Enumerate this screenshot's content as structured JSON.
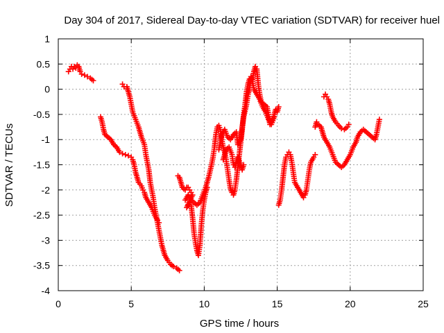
{
  "chart_data": {
    "type": "scatter",
    "title": "Day 304 of 2017, Sidereal Day-to-day VTEC variation (SDTVAR) for receiver huel",
    "xlabel": "GPS time / hours",
    "ylabel": "SDTVAR / TECUs",
    "xlim": [
      0,
      25
    ],
    "ylim": [
      -4,
      1
    ],
    "xticks": [
      0,
      5,
      10,
      15,
      20,
      25
    ],
    "yticks": [
      -4,
      -3.5,
      -3,
      -2.5,
      -2,
      -1.5,
      -1,
      -0.5,
      0,
      0.5,
      1
    ],
    "xtick_labels": [
      "0",
      "5",
      "10",
      "15",
      "20",
      "25"
    ],
    "ytick_labels": [
      "-4",
      "-3.5",
      "-3",
      "-2.5",
      "-2",
      "-1.5",
      "-1",
      "-0.5",
      "0",
      "0.5",
      "1"
    ],
    "grid": true,
    "marker": "+",
    "series_color": "#ff0000",
    "series": [
      {
        "points": [
          [
            0.7,
            0.35
          ],
          [
            0.8,
            0.4
          ],
          [
            0.9,
            0.45
          ],
          [
            1.0,
            0.4
          ],
          [
            1.1,
            0.45
          ],
          [
            1.2,
            0.42
          ],
          [
            1.3,
            0.48
          ],
          [
            1.4,
            0.45
          ],
          [
            1.5,
            0.35
          ],
          [
            1.6,
            0.3
          ],
          [
            1.8,
            0.28
          ],
          [
            2.0,
            0.25
          ],
          [
            2.2,
            0.22
          ],
          [
            2.4,
            0.17
          ],
          [
            2.9,
            -0.55
          ],
          [
            3.0,
            -0.65
          ],
          [
            3.1,
            -0.8
          ],
          [
            3.2,
            -0.9
          ],
          [
            3.4,
            -0.95
          ],
          [
            3.6,
            -1.0
          ],
          [
            3.8,
            -1.1
          ],
          [
            4.0,
            -1.15
          ],
          [
            4.2,
            -1.25
          ],
          [
            4.4,
            -1.28
          ],
          [
            4.6,
            -1.3
          ],
          [
            4.8,
            -1.32
          ],
          [
            5.0,
            -1.35
          ],
          [
            5.1,
            -1.4
          ],
          [
            5.2,
            -1.5
          ],
          [
            5.3,
            -1.65
          ],
          [
            5.4,
            -1.75
          ],
          [
            5.5,
            -1.85
          ],
          [
            5.7,
            -1.92
          ],
          [
            5.8,
            -2.0
          ],
          [
            5.9,
            -2.05
          ],
          [
            6.0,
            -2.15
          ],
          [
            6.2,
            -2.25
          ],
          [
            6.4,
            -2.35
          ],
          [
            6.6,
            -2.5
          ],
          [
            6.8,
            -2.6
          ],
          [
            6.9,
            -2.65
          ],
          [
            4.4,
            0.1
          ],
          [
            4.5,
            0.05
          ],
          [
            4.7,
            0.05
          ],
          [
            4.8,
            -0.05
          ],
          [
            4.9,
            -0.15
          ],
          [
            5.0,
            -0.3
          ],
          [
            5.1,
            -0.45
          ],
          [
            5.3,
            -0.6
          ],
          [
            5.5,
            -0.75
          ],
          [
            5.7,
            -0.95
          ],
          [
            5.9,
            -1.1
          ],
          [
            6.0,
            -1.3
          ],
          [
            6.2,
            -1.6
          ],
          [
            6.3,
            -1.85
          ],
          [
            6.4,
            -2.0
          ],
          [
            6.5,
            -2.15
          ],
          [
            6.6,
            -2.35
          ],
          [
            6.7,
            -2.5
          ],
          [
            6.8,
            -2.65
          ],
          [
            6.9,
            -2.8
          ],
          [
            7.0,
            -2.95
          ],
          [
            7.1,
            -3.1
          ],
          [
            7.2,
            -3.2
          ],
          [
            7.3,
            -3.3
          ],
          [
            7.5,
            -3.4
          ],
          [
            7.7,
            -3.48
          ],
          [
            7.9,
            -3.52
          ],
          [
            8.1,
            -3.55
          ],
          [
            8.3,
            -3.6
          ],
          [
            8.2,
            -1.72
          ],
          [
            8.3,
            -1.75
          ],
          [
            8.4,
            -1.85
          ],
          [
            8.5,
            -1.95
          ],
          [
            8.6,
            -1.98
          ],
          [
            8.7,
            -2.0
          ],
          [
            8.8,
            -1.95
          ],
          [
            8.9,
            -1.95
          ],
          [
            9.0,
            -2.0
          ],
          [
            9.1,
            -2.05
          ],
          [
            9.2,
            -2.1
          ],
          [
            8.8,
            -2.35
          ],
          [
            8.9,
            -2.3
          ],
          [
            9.0,
            -2.25
          ],
          [
            9.1,
            -2.3
          ],
          [
            9.2,
            -2.55
          ],
          [
            9.3,
            -2.85
          ],
          [
            9.4,
            -3.05
          ],
          [
            9.5,
            -3.2
          ],
          [
            9.6,
            -3.3
          ],
          [
            9.7,
            -3.1
          ],
          [
            9.8,
            -2.7
          ],
          [
            9.9,
            -2.4
          ],
          [
            10.0,
            -2.2
          ],
          [
            10.1,
            -2.05
          ],
          [
            10.2,
            -1.95
          ],
          [
            8.7,
            -2.2
          ],
          [
            8.9,
            -2.1
          ],
          [
            9.1,
            -2.2
          ],
          [
            9.3,
            -2.25
          ],
          [
            9.5,
            -2.3
          ],
          [
            9.7,
            -2.25
          ],
          [
            9.9,
            -2.1
          ],
          [
            10.1,
            -1.95
          ],
          [
            10.3,
            -1.75
          ],
          [
            10.5,
            -1.5
          ],
          [
            10.6,
            -1.35
          ],
          [
            10.7,
            -1.15
          ],
          [
            10.8,
            -0.9
          ],
          [
            10.9,
            -0.75
          ],
          [
            11.0,
            -0.72
          ],
          [
            11.1,
            -0.8
          ],
          [
            11.2,
            -1.0
          ],
          [
            11.3,
            -1.15
          ],
          [
            11.4,
            -1.25
          ],
          [
            11.5,
            -1.4
          ],
          [
            11.6,
            -1.6
          ],
          [
            11.7,
            -1.8
          ],
          [
            11.8,
            -1.98
          ],
          [
            11.9,
            -2.05
          ],
          [
            12.0,
            -2.1
          ],
          [
            12.1,
            -2.0
          ],
          [
            12.2,
            -1.8
          ],
          [
            12.3,
            -1.55
          ],
          [
            12.4,
            -1.3
          ],
          [
            12.5,
            -1.05
          ],
          [
            12.6,
            -0.8
          ],
          [
            12.7,
            -0.5
          ],
          [
            12.8,
            -0.3
          ],
          [
            12.9,
            -0.05
          ],
          [
            13.0,
            0.1
          ],
          [
            13.1,
            0.2
          ],
          [
            13.2,
            0.15
          ],
          [
            13.3,
            0.2
          ],
          [
            13.4,
            0.35
          ],
          [
            13.5,
            0.45
          ],
          [
            13.6,
            0.4
          ],
          [
            13.7,
            0.1
          ],
          [
            13.8,
            -0.1
          ],
          [
            13.9,
            -0.25
          ],
          [
            14.1,
            -0.3
          ],
          [
            14.3,
            -0.35
          ],
          [
            14.4,
            -0.5
          ],
          [
            14.5,
            -0.7
          ],
          [
            14.6,
            -0.65
          ],
          [
            14.8,
            -0.5
          ],
          [
            14.9,
            -0.4
          ],
          [
            15.0,
            -0.45
          ],
          [
            15.1,
            -0.35
          ],
          [
            11.0,
            -1.2
          ],
          [
            11.2,
            -0.9
          ],
          [
            11.4,
            -0.8
          ],
          [
            11.6,
            -0.95
          ],
          [
            11.8,
            -1.0
          ],
          [
            12.0,
            -0.9
          ],
          [
            12.2,
            -0.85
          ],
          [
            12.3,
            -1.1
          ],
          [
            12.5,
            -1.0
          ],
          [
            12.6,
            -0.75
          ],
          [
            12.7,
            -0.55
          ],
          [
            12.9,
            -0.3
          ],
          [
            13.0,
            -0.1
          ],
          [
            13.1,
            0.0
          ],
          [
            13.2,
            0.25
          ],
          [
            13.3,
            0.15
          ],
          [
            13.4,
            0.0
          ],
          [
            13.6,
            -0.1
          ],
          [
            13.8,
            -0.2
          ],
          [
            14.0,
            -0.35
          ],
          [
            14.2,
            -0.45
          ],
          [
            14.4,
            -0.6
          ],
          [
            14.6,
            -0.7
          ],
          [
            14.8,
            -0.55
          ],
          [
            11.3,
            -1.4
          ],
          [
            11.5,
            -1.2
          ],
          [
            11.7,
            -1.15
          ],
          [
            11.9,
            -1.3
          ],
          [
            12.0,
            -1.5
          ],
          [
            12.1,
            -1.55
          ],
          [
            12.3,
            -1.35
          ],
          [
            12.5,
            -1.5
          ],
          [
            12.6,
            -1.6
          ],
          [
            12.7,
            -1.5
          ],
          [
            15.1,
            -2.3
          ],
          [
            15.2,
            -2.2
          ],
          [
            15.3,
            -2.0
          ],
          [
            15.4,
            -1.75
          ],
          [
            15.5,
            -1.5
          ],
          [
            15.6,
            -1.35
          ],
          [
            15.7,
            -1.3
          ],
          [
            15.8,
            -1.25
          ],
          [
            15.9,
            -1.3
          ],
          [
            16.0,
            -1.45
          ],
          [
            16.1,
            -1.65
          ],
          [
            16.2,
            -1.85
          ],
          [
            16.4,
            -1.95
          ],
          [
            16.6,
            -2.05
          ],
          [
            16.8,
            -2.15
          ],
          [
            16.9,
            -2.1
          ],
          [
            17.0,
            -2.0
          ],
          [
            17.1,
            -1.8
          ],
          [
            17.2,
            -1.6
          ],
          [
            17.3,
            -1.45
          ],
          [
            17.5,
            -1.35
          ],
          [
            17.6,
            -1.3
          ],
          [
            17.6,
            -0.75
          ],
          [
            17.7,
            -0.65
          ],
          [
            17.8,
            -0.7
          ],
          [
            18.0,
            -0.75
          ],
          [
            18.1,
            -0.85
          ],
          [
            18.2,
            -0.95
          ],
          [
            18.4,
            -1.05
          ],
          [
            18.6,
            -1.15
          ],
          [
            18.8,
            -1.3
          ],
          [
            19.0,
            -1.45
          ],
          [
            19.2,
            -1.5
          ],
          [
            19.4,
            -1.55
          ],
          [
            19.6,
            -1.5
          ],
          [
            19.8,
            -1.4
          ],
          [
            20.0,
            -1.3
          ],
          [
            20.2,
            -1.15
          ],
          [
            20.4,
            -1.05
          ],
          [
            20.5,
            -0.95
          ],
          [
            20.7,
            -0.85
          ],
          [
            20.9,
            -0.8
          ],
          [
            21.1,
            -0.85
          ],
          [
            21.3,
            -0.9
          ],
          [
            21.5,
            -0.95
          ],
          [
            21.7,
            -1.0
          ],
          [
            21.8,
            -0.9
          ],
          [
            21.9,
            -0.75
          ],
          [
            22.0,
            -0.6
          ],
          [
            18.2,
            -0.15
          ],
          [
            18.3,
            -0.1
          ],
          [
            18.4,
            -0.15
          ],
          [
            18.5,
            -0.2
          ],
          [
            18.6,
            -0.3
          ],
          [
            18.7,
            -0.45
          ],
          [
            18.8,
            -0.55
          ],
          [
            19.0,
            -0.65
          ],
          [
            19.2,
            -0.72
          ],
          [
            19.4,
            -0.78
          ],
          [
            19.6,
            -0.8
          ],
          [
            19.8,
            -0.75
          ],
          [
            19.9,
            -0.7
          ]
        ]
      }
    ]
  }
}
